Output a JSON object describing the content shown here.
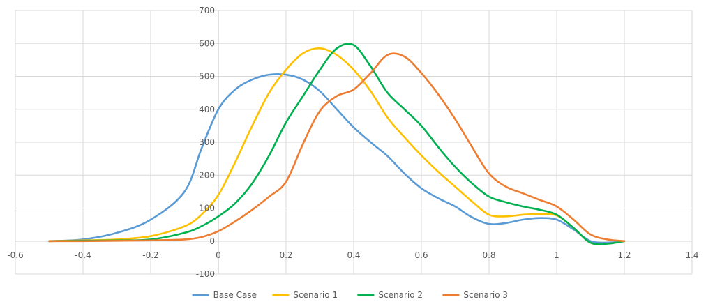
{
  "chart_data": {
    "type": "line",
    "title": "",
    "xlabel": "",
    "ylabel": "",
    "xlim": [
      -0.6,
      1.4
    ],
    "ylim": [
      -100,
      700
    ],
    "x_ticks": [
      -0.6,
      -0.4,
      -0.2,
      0,
      0.2,
      0.4,
      0.6,
      0.8,
      1,
      1.2,
      1.4
    ],
    "x_tick_labels": [
      "-0.6",
      "-0.4",
      "-0.2",
      "0",
      "0.2",
      "0.4",
      "0.6",
      "0.8",
      "1",
      "1.2",
      "1.4"
    ],
    "y_ticks": [
      -100,
      0,
      100,
      200,
      300,
      400,
      500,
      600,
      700
    ],
    "y_tick_labels": [
      "-100",
      "0",
      "100",
      "200",
      "300",
      "400",
      "500",
      "600",
      "700"
    ],
    "grid": true,
    "legend_position": "bottom",
    "x": [
      -0.5,
      -0.4,
      -0.3,
      -0.2,
      -0.1,
      -0.05,
      0,
      0.05,
      0.1,
      0.15,
      0.2,
      0.25,
      0.3,
      0.35,
      0.4,
      0.45,
      0.5,
      0.55,
      0.6,
      0.65,
      0.7,
      0.75,
      0.8,
      0.85,
      0.9,
      0.95,
      1,
      1.05,
      1.1,
      1.15,
      1.2
    ],
    "series": [
      {
        "name": "Base Case",
        "color": "#5B9BD5",
        "values": [
          0,
          5,
          25,
          65,
          150,
          280,
          400,
          460,
          490,
          505,
          505,
          490,
          455,
          400,
          345,
          300,
          258,
          205,
          160,
          130,
          105,
          72,
          52,
          55,
          65,
          70,
          65,
          35,
          0,
          -5,
          0
        ]
      },
      {
        "name": "Scenario 1",
        "color": "#FFC000",
        "values": [
          0,
          2,
          5,
          15,
          45,
          80,
          140,
          240,
          350,
          450,
          520,
          570,
          585,
          565,
          520,
          455,
          375,
          315,
          260,
          210,
          165,
          120,
          80,
          75,
          80,
          82,
          78,
          40,
          -5,
          -8,
          0
        ]
      },
      {
        "name": "Scenario 2",
        "color": "#00B050",
        "values": [
          0,
          1,
          2,
          5,
          25,
          45,
          75,
          115,
          175,
          260,
          360,
          440,
          520,
          585,
          595,
          530,
          450,
          400,
          350,
          285,
          225,
          175,
          135,
          118,
          105,
          95,
          80,
          40,
          -5,
          -8,
          0
        ]
      },
      {
        "name": "Scenario 3",
        "color": "#ED7D31",
        "values": [
          0,
          0,
          1,
          2,
          5,
          12,
          30,
          60,
          95,
          135,
          180,
          295,
          395,
          440,
          460,
          510,
          565,
          560,
          510,
          445,
          370,
          285,
          205,
          165,
          145,
          125,
          105,
          65,
          20,
          5,
          0
        ]
      }
    ]
  }
}
